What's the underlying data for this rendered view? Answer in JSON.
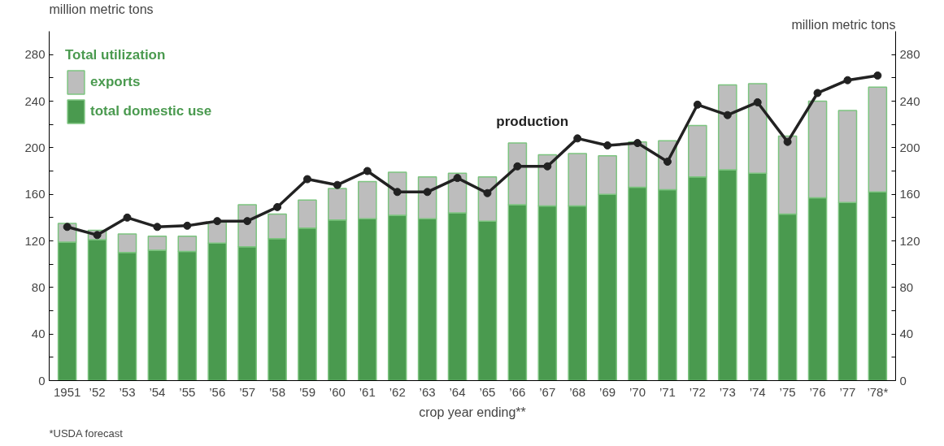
{
  "chart_data": {
    "type": "bar",
    "stacked": true,
    "categories": [
      "1951",
      "’52",
      "’53",
      "’54",
      "’55",
      "’56",
      "’57",
      "’58",
      "’59",
      "’60",
      "’61",
      "’62",
      "’63",
      "’64",
      "’65",
      "’66",
      "’67",
      "’68",
      "’69",
      "’70",
      "’71",
      "’72",
      "’73",
      "’74",
      "’75",
      "’76",
      "’77",
      "’78*"
    ],
    "series": [
      {
        "name": "total domestic use",
        "color": "#4a9a4f",
        "values": [
          119,
          121,
          110,
          112,
          111,
          118,
          115,
          122,
          131,
          138,
          139,
          142,
          139,
          144,
          137,
          151,
          150,
          150,
          160,
          166,
          164,
          175,
          181,
          178,
          143,
          157,
          153,
          162
        ]
      },
      {
        "name": "exports",
        "color": "#bdbdbd",
        "values": [
          16,
          8,
          16,
          12,
          13,
          18,
          36,
          21,
          24,
          27,
          32,
          37,
          36,
          34,
          38,
          53,
          44,
          45,
          33,
          39,
          42,
          44,
          73,
          77,
          67,
          83,
          79,
          90
        ]
      },
      {
        "name": "production",
        "type": "line",
        "color": "#222222",
        "values": [
          132,
          125,
          140,
          132,
          133,
          137,
          137,
          149,
          173,
          168,
          180,
          162,
          162,
          174,
          161,
          184,
          184,
          208,
          202,
          204,
          188,
          237,
          228,
          239,
          205,
          247,
          258,
          262
        ]
      }
    ],
    "legend_title": "Total utilization",
    "legend": "top left",
    "xlabel": "crop year ending**",
    "ylabel": "million metric tons",
    "y2label": "million metric tons",
    "ylim": [
      0,
      300
    ],
    "y2lim": [
      0,
      300
    ],
    "yticks": [
      0,
      {
        "value": 20,
        "label": null
      },
      40,
      {
        "value": 60,
        "label": null
      },
      80,
      {
        "value": 100,
        "label": null
      },
      120,
      {
        "value": 140,
        "label": null
      },
      160,
      {
        "value": 180,
        "label": null
      },
      200,
      {
        "value": 220,
        "label": null
      },
      240,
      {
        "value": 260,
        "label": null
      },
      280
    ],
    "y2ticks": [
      0,
      {
        "value": 20,
        "label": null
      },
      40,
      {
        "value": 60,
        "label": null
      },
      80,
      {
        "value": 100,
        "label": null
      },
      120,
      {
        "value": 140,
        "label": null
      },
      160,
      {
        "value": 180,
        "label": null
      },
      200,
      {
        "value": 220,
        "label": null
      },
      240,
      {
        "value": 260,
        "label": null
      },
      280
    ],
    "marker": "circle",
    "grid": false,
    "annotations": [
      "*USDA forecast"
    ]
  }
}
